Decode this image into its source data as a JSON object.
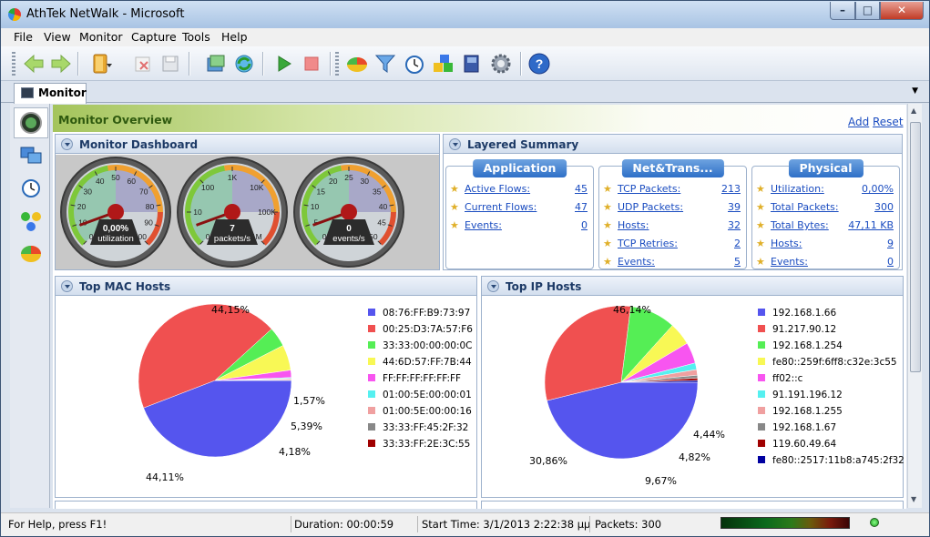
{
  "window": {
    "title": "AthTek NetWalk - Microsoft",
    "min": "–",
    "max": "□",
    "close": "✕"
  },
  "menu": [
    "File",
    "View",
    "Monitor",
    "Capture",
    "Tools",
    "Help"
  ],
  "toolbar_icons": [
    "back-icon",
    "forward-icon",
    "open-icon",
    "delete-icon",
    "save-icon",
    "export-icon",
    "refresh-icon",
    "play-icon",
    "stop-icon",
    "chart-icon",
    "filter-icon",
    "alarm-icon",
    "objects-icon",
    "book-icon",
    "settings-icon",
    "help-icon"
  ],
  "tab": {
    "label": "Monitor"
  },
  "overview": {
    "title": "Monitor Overview",
    "add": "Add",
    "reset": "Reset"
  },
  "dashboard": {
    "title": "Monitor Dashboard",
    "gauges": [
      {
        "value": "0,00%",
        "unit": "utilization",
        "ticks": [
          "0",
          "10",
          "20",
          "30",
          "40",
          "50",
          "60",
          "70",
          "80",
          "90",
          "100"
        ]
      },
      {
        "value": "7",
        "unit": "packets/s",
        "ticks": [
          "0",
          "10",
          "100",
          "1K",
          "10K",
          "100K",
          "1M"
        ]
      },
      {
        "value": "0",
        "unit": "events/s",
        "ticks": [
          "0",
          "5",
          "10",
          "15",
          "20",
          "25",
          "30",
          "35",
          "40",
          "45",
          "50"
        ]
      }
    ]
  },
  "summary": {
    "title": "Layered Summary",
    "columns": [
      {
        "title": "Application",
        "rows": [
          {
            "label": "Active Flows:",
            "value": "45"
          },
          {
            "label": "Current Flows:",
            "value": "47"
          },
          {
            "label": "Events:",
            "value": "0"
          }
        ]
      },
      {
        "title": "Net&Trans...",
        "rows": [
          {
            "label": "TCP Packets:",
            "value": "213"
          },
          {
            "label": "UDP Packets:",
            "value": "39"
          },
          {
            "label": "Hosts:",
            "value": "32"
          },
          {
            "label": "TCP Retries:",
            "value": "2"
          },
          {
            "label": "Events:",
            "value": "5"
          }
        ]
      },
      {
        "title": "Physical",
        "rows": [
          {
            "label": "Utilization:",
            "value": "0,00%"
          },
          {
            "label": "Total Packets:",
            "value": "300"
          },
          {
            "label": "Total Bytes:",
            "value": "47,11 KB"
          },
          {
            "label": "Hosts:",
            "value": "9"
          },
          {
            "label": "Events:",
            "value": "0"
          }
        ]
      }
    ]
  },
  "mac_hosts": {
    "title": "Top MAC Hosts",
    "legend": [
      "08:76:FF:B9:73:97",
      "00:25:D3:7A:57:F6",
      "33:33:00:00:00:0C",
      "44:6D:57:FF:7B:44",
      "FF:FF:FF:FF:FF:FF",
      "01:00:5E:00:00:01",
      "01:00:5E:00:00:16",
      "33:33:FF:45:2F:32",
      "33:33:FF:2E:3C:55"
    ],
    "labels": [
      "44,15%",
      "44,11%",
      "4,18%",
      "5,39%",
      "1,57%"
    ]
  },
  "ip_hosts": {
    "title": "Top IP Hosts",
    "legend": [
      "192.168.1.66",
      "91.217.90.12",
      "192.168.1.254",
      "fe80::259f:6ff8:c32e:3c55",
      "ff02::c",
      "91.191.196.12",
      "192.168.1.255",
      "192.168.1.67",
      "119.60.49.64",
      "fe80::2517:11b8:a745:2f32"
    ],
    "labels": [
      "46,14%",
      "30,86%",
      "9,67%",
      "4,82%",
      "4,44%"
    ]
  },
  "chart_data": [
    {
      "type": "pie",
      "title": "Top MAC Hosts",
      "categories": [
        "08:76:FF:B9:73:97",
        "00:25:D3:7A:57:F6",
        "33:33:00:00:00:0C",
        "44:6D:57:FF:7B:44",
        "FF:FF:FF:FF:FF:FF",
        "01:00:5E:00:00:01",
        "01:00:5E:00:00:16",
        "33:33:FF:45:2F:32",
        "33:33:FF:2E:3C:55"
      ],
      "values": [
        44.15,
        44.11,
        4.18,
        5.39,
        1.57,
        0.2,
        0.2,
        0.1,
        0.1
      ],
      "colors": [
        "#5555ee",
        "#f05050",
        "#55ee55",
        "#f8f855",
        "#f855f0",
        "#55f0f0",
        "#f0a0a0",
        "#888888",
        "#a00000"
      ]
    },
    {
      "type": "pie",
      "title": "Top IP Hosts",
      "categories": [
        "192.168.1.66",
        "91.217.90.12",
        "192.168.1.254",
        "fe80::259f:6ff8:c32e:3c55",
        "ff02::c",
        "91.191.196.12",
        "192.168.1.255",
        "192.168.1.67",
        "119.60.49.64",
        "fe80::2517:11b8:a745:2f32"
      ],
      "values": [
        46.14,
        30.86,
        9.67,
        4.82,
        4.44,
        1.4,
        1.2,
        0.6,
        0.5,
        0.37
      ],
      "colors": [
        "#5555ee",
        "#f05050",
        "#55ee55",
        "#f8f855",
        "#f855f0",
        "#55f0f0",
        "#f0a0a0",
        "#888888",
        "#a00000",
        "#0000a0"
      ]
    }
  ],
  "status": {
    "help": "For Help, press F1!",
    "duration": "Duration: 00:00:59",
    "start": "Start Time: 3/1/2013 2:22:38 μμ",
    "packets": "Packets: 300"
  }
}
